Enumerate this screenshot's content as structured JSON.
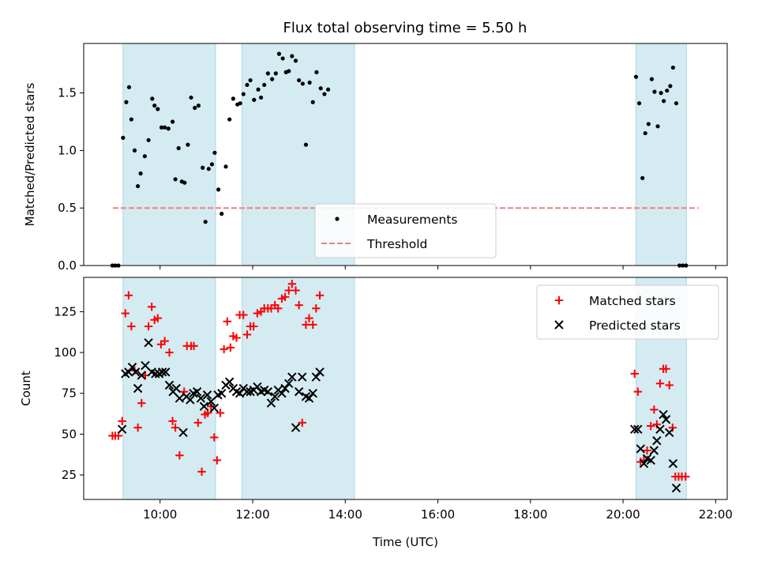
{
  "chart_data": {
    "title": "Flux total observing time = 5.50 h",
    "xlabel": "Time (UTC)",
    "x_units": "hours UTC",
    "xlim": [
      8.35,
      22.25
    ],
    "xticks": [
      {
        "value": 10,
        "label": "10:00"
      },
      {
        "value": 12,
        "label": "12:00"
      },
      {
        "value": 14,
        "label": "14:00"
      },
      {
        "value": 16,
        "label": "16:00"
      },
      {
        "value": 18,
        "label": "18:00"
      },
      {
        "value": 20,
        "label": "20:00"
      },
      {
        "value": 22,
        "label": "22:00"
      }
    ],
    "shaded_intervals": [
      [
        9.2,
        11.2
      ],
      [
        11.77,
        14.2
      ],
      [
        20.28,
        21.37
      ]
    ],
    "shade_color": "#add8e6",
    "top": {
      "type": "scatter",
      "ylabel": "Matched/Predicted stars",
      "ylim": [
        0,
        1.93
      ],
      "yticks": [
        {
          "value": 0,
          "label": "0.0"
        },
        {
          "value": 0.5,
          "label": "0.5"
        },
        {
          "value": 1.0,
          "label": "1.0"
        },
        {
          "value": 1.5,
          "label": "1.5"
        }
      ],
      "threshold": {
        "y": 0.5,
        "x_range": [
          8.98,
          21.63
        ],
        "color": "#f08080"
      },
      "legend": {
        "position": "lower-center",
        "entries": [
          {
            "label": "Measurements",
            "marker": "dot"
          },
          {
            "label": "Threshold",
            "marker": "dash"
          }
        ]
      },
      "measurements": [
        [
          8.97,
          0
        ],
        [
          9.03,
          0
        ],
        [
          9.1,
          0
        ],
        [
          9.2,
          1.11
        ],
        [
          9.27,
          1.42
        ],
        [
          9.33,
          1.55
        ],
        [
          9.38,
          1.27
        ],
        [
          9.45,
          1.0
        ],
        [
          9.52,
          0.69
        ],
        [
          9.58,
          0.8
        ],
        [
          9.67,
          0.95
        ],
        [
          9.75,
          1.09
        ],
        [
          9.83,
          1.45
        ],
        [
          9.88,
          1.39
        ],
        [
          9.95,
          1.36
        ],
        [
          10.03,
          1.2
        ],
        [
          10.1,
          1.2
        ],
        [
          10.18,
          1.19
        ],
        [
          10.27,
          1.25
        ],
        [
          10.33,
          0.75
        ],
        [
          10.4,
          1.02
        ],
        [
          10.47,
          0.73
        ],
        [
          10.53,
          0.72
        ],
        [
          10.6,
          1.05
        ],
        [
          10.67,
          1.46
        ],
        [
          10.75,
          1.37
        ],
        [
          10.83,
          1.39
        ],
        [
          10.92,
          0.85
        ],
        [
          10.98,
          0.38
        ],
        [
          11.05,
          0.84
        ],
        [
          11.12,
          0.88
        ],
        [
          11.18,
          0.98
        ],
        [
          11.26,
          0.66
        ],
        [
          11.33,
          0.45
        ],
        [
          11.42,
          0.86
        ],
        [
          11.5,
          1.27
        ],
        [
          11.58,
          1.45
        ],
        [
          11.67,
          1.4
        ],
        [
          11.73,
          1.41
        ],
        [
          11.8,
          1.49
        ],
        [
          11.88,
          1.57
        ],
        [
          11.95,
          1.61
        ],
        [
          12.03,
          1.44
        ],
        [
          12.12,
          1.53
        ],
        [
          12.18,
          1.46
        ],
        [
          12.25,
          1.57
        ],
        [
          12.33,
          1.67
        ],
        [
          12.42,
          1.62
        ],
        [
          12.5,
          1.67
        ],
        [
          12.57,
          1.84
        ],
        [
          12.65,
          1.8
        ],
        [
          12.72,
          1.68
        ],
        [
          12.78,
          1.69
        ],
        [
          12.85,
          1.82
        ],
        [
          12.93,
          1.78
        ],
        [
          13.0,
          1.61
        ],
        [
          13.08,
          1.58
        ],
        [
          13.15,
          1.05
        ],
        [
          13.23,
          1.59
        ],
        [
          13.3,
          1.42
        ],
        [
          13.38,
          1.68
        ],
        [
          13.47,
          1.54
        ],
        [
          13.55,
          1.49
        ],
        [
          13.63,
          1.53
        ],
        [
          20.28,
          1.64
        ],
        [
          20.35,
          1.41
        ],
        [
          20.42,
          0.76
        ],
        [
          20.48,
          1.15
        ],
        [
          20.55,
          1.23
        ],
        [
          20.62,
          1.62
        ],
        [
          20.68,
          1.51
        ],
        [
          20.75,
          1.21
        ],
        [
          20.82,
          1.5
        ],
        [
          20.88,
          1.43
        ],
        [
          20.95,
          1.52
        ],
        [
          21.02,
          1.56
        ],
        [
          21.08,
          1.72
        ],
        [
          21.15,
          1.41
        ],
        [
          21.22,
          0
        ],
        [
          21.29,
          0
        ],
        [
          21.36,
          0
        ]
      ]
    },
    "bottom": {
      "type": "scatter",
      "ylabel": "Count",
      "ylim": [
        10,
        146
      ],
      "yticks": [
        {
          "value": 25,
          "label": "25"
        },
        {
          "value": 50,
          "label": "50"
        },
        {
          "value": 75,
          "label": "75"
        },
        {
          "value": 100,
          "label": "100"
        },
        {
          "value": 125,
          "label": "125"
        }
      ],
      "legend": {
        "position": "upper-right",
        "entries": [
          {
            "label": "Matched stars",
            "marker": "plus"
          },
          {
            "label": "Predicted stars",
            "marker": "x"
          }
        ]
      },
      "matched": [
        [
          8.97,
          49
        ],
        [
          9.03,
          49
        ],
        [
          9.1,
          49
        ],
        [
          9.18,
          58
        ],
        [
          9.25,
          124
        ],
        [
          9.32,
          135
        ],
        [
          9.38,
          116
        ],
        [
          9.45,
          89
        ],
        [
          9.52,
          54
        ],
        [
          9.6,
          69
        ],
        [
          9.68,
          86
        ],
        [
          9.75,
          116
        ],
        [
          9.82,
          128
        ],
        [
          9.88,
          120
        ],
        [
          9.95,
          121
        ],
        [
          10.02,
          105
        ],
        [
          10.1,
          107
        ],
        [
          10.2,
          100
        ],
        [
          10.27,
          58
        ],
        [
          10.33,
          54
        ],
        [
          10.42,
          37
        ],
        [
          10.52,
          76
        ],
        [
          10.58,
          104
        ],
        [
          10.67,
          104
        ],
        [
          10.73,
          104
        ],
        [
          10.82,
          57
        ],
        [
          10.9,
          27
        ],
        [
          10.97,
          62
        ],
        [
          11.03,
          63
        ],
        [
          11.1,
          67
        ],
        [
          11.17,
          48
        ],
        [
          11.23,
          34
        ],
        [
          11.3,
          63
        ],
        [
          11.38,
          102
        ],
        [
          11.45,
          119
        ],
        [
          11.52,
          103
        ],
        [
          11.58,
          110
        ],
        [
          11.65,
          109
        ],
        [
          11.72,
          123
        ],
        [
          11.8,
          123
        ],
        [
          11.88,
          111
        ],
        [
          11.95,
          116
        ],
        [
          12.02,
          116
        ],
        [
          12.1,
          124
        ],
        [
          12.18,
          125
        ],
        [
          12.25,
          127
        ],
        [
          12.33,
          127
        ],
        [
          12.4,
          127
        ],
        [
          12.48,
          129
        ],
        [
          12.55,
          127
        ],
        [
          12.63,
          133
        ],
        [
          12.7,
          134
        ],
        [
          12.78,
          138
        ],
        [
          12.85,
          142
        ],
        [
          12.93,
          138
        ],
        [
          13.0,
          129
        ],
        [
          13.07,
          57
        ],
        [
          13.15,
          117
        ],
        [
          13.22,
          121
        ],
        [
          13.3,
          117
        ],
        [
          13.37,
          127
        ],
        [
          13.45,
          135
        ],
        [
          20.25,
          87
        ],
        [
          20.32,
          76
        ],
        [
          20.38,
          33
        ],
        [
          20.45,
          34
        ],
        [
          20.52,
          40
        ],
        [
          20.6,
          55
        ],
        [
          20.67,
          65
        ],
        [
          20.73,
          56
        ],
        [
          20.8,
          81
        ],
        [
          20.87,
          90
        ],
        [
          20.93,
          90
        ],
        [
          21.0,
          80
        ],
        [
          21.07,
          54
        ],
        [
          21.13,
          24
        ],
        [
          21.2,
          24
        ],
        [
          21.27,
          24
        ],
        [
          21.35,
          24
        ]
      ],
      "predicted": [
        [
          9.18,
          53
        ],
        [
          9.25,
          87
        ],
        [
          9.32,
          88
        ],
        [
          9.4,
          91
        ],
        [
          9.47,
          88
        ],
        [
          9.52,
          78
        ],
        [
          9.6,
          86
        ],
        [
          9.68,
          92
        ],
        [
          9.75,
          106
        ],
        [
          9.82,
          88
        ],
        [
          9.9,
          87
        ],
        [
          9.98,
          87
        ],
        [
          10.05,
          88
        ],
        [
          10.12,
          88
        ],
        [
          10.2,
          80
        ],
        [
          10.28,
          76
        ],
        [
          10.35,
          78
        ],
        [
          10.42,
          72
        ],
        [
          10.5,
          51
        ],
        [
          10.57,
          73
        ],
        [
          10.65,
          71
        ],
        [
          10.72,
          75
        ],
        [
          10.8,
          76
        ],
        [
          10.88,
          72
        ],
        [
          10.95,
          67
        ],
        [
          11.02,
          74
        ],
        [
          11.1,
          70
        ],
        [
          11.17,
          66
        ],
        [
          11.25,
          74
        ],
        [
          11.33,
          75
        ],
        [
          11.42,
          80
        ],
        [
          11.5,
          82
        ],
        [
          11.58,
          78
        ],
        [
          11.65,
          76
        ],
        [
          11.72,
          75
        ],
        [
          11.8,
          78
        ],
        [
          11.88,
          76
        ],
        [
          11.95,
          76
        ],
        [
          12.02,
          77
        ],
        [
          12.1,
          79
        ],
        [
          12.18,
          76
        ],
        [
          12.25,
          77
        ],
        [
          12.33,
          76
        ],
        [
          12.4,
          69
        ],
        [
          12.48,
          73
        ],
        [
          12.55,
          77
        ],
        [
          12.63,
          75
        ],
        [
          12.7,
          78
        ],
        [
          12.78,
          81
        ],
        [
          12.85,
          85
        ],
        [
          12.93,
          54
        ],
        [
          13.0,
          76
        ],
        [
          13.07,
          85
        ],
        [
          13.15,
          73
        ],
        [
          13.22,
          72
        ],
        [
          13.3,
          75
        ],
        [
          13.37,
          85
        ],
        [
          13.45,
          88
        ],
        [
          20.25,
          53
        ],
        [
          20.32,
          53
        ],
        [
          20.38,
          41
        ],
        [
          20.45,
          32
        ],
        [
          20.52,
          35
        ],
        [
          20.6,
          34
        ],
        [
          20.67,
          40
        ],
        [
          20.73,
          46
        ],
        [
          20.8,
          53
        ],
        [
          20.87,
          62
        ],
        [
          20.93,
          59
        ],
        [
          21.0,
          51
        ],
        [
          21.08,
          32
        ],
        [
          21.15,
          17
        ]
      ]
    }
  }
}
